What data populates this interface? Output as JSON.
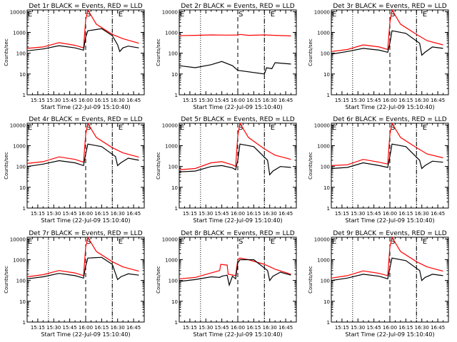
{
  "chart_data": {
    "type": "line",
    "layout": "3x3 grid",
    "shared": {
      "xlabel": "Start Time (22-Jul-09 15:10:40)",
      "ylabel": "Counts/sec",
      "xticks": [
        "15:15",
        "15:30",
        "15:45",
        "16:00",
        "16:15",
        "16:30",
        "16:45"
      ],
      "xtick_minutes": [
        15,
        30,
        45,
        60,
        75,
        90,
        105
      ],
      "xlim_minutes": [
        5,
        115
      ],
      "yscale": "log",
      "ylim": [
        1,
        12000
      ],
      "yticks": [
        "1",
        "10",
        "100",
        "1000",
        "10000"
      ],
      "colors": {
        "events": "#000000",
        "lld": "#ff0000",
        "frame": "#000000"
      },
      "marker_labels": [
        "E",
        "S",
        "E"
      ],
      "marker_minutes": [
        5,
        60,
        90
      ],
      "markers_style": {
        "dashed": 60,
        "dotted": [
          25,
          85
        ]
      }
    },
    "panels": [
      {
        "title": "Det 1r BLACK = Events, RED = LLD",
        "events": [
          [
            5,
            130
          ],
          [
            20,
            160
          ],
          [
            35,
            230
          ],
          [
            50,
            180
          ],
          [
            58,
            140
          ],
          [
            60,
            600
          ],
          [
            62,
            1200
          ],
          [
            75,
            1500
          ],
          [
            85,
            700
          ],
          [
            90,
            250
          ],
          [
            92,
            120
          ],
          [
            95,
            180
          ],
          [
            100,
            220
          ],
          [
            110,
            180
          ]
        ],
        "lld": [
          [
            5,
            170
          ],
          [
            20,
            200
          ],
          [
            35,
            320
          ],
          [
            50,
            240
          ],
          [
            58,
            180
          ],
          [
            60,
            4000
          ],
          [
            62,
            12000
          ],
          [
            70,
            2500
          ],
          [
            85,
            800
          ],
          [
            95,
            500
          ],
          [
            110,
            300
          ]
        ]
      },
      {
        "title": "Det 2r BLACK = Events, RED = LLD",
        "events": [
          [
            5,
            25
          ],
          [
            20,
            20
          ],
          [
            35,
            28
          ],
          [
            45,
            40
          ],
          [
            55,
            25
          ],
          [
            60,
            15
          ],
          [
            85,
            10
          ],
          [
            87,
            20
          ],
          [
            92,
            18
          ],
          [
            95,
            35
          ],
          [
            110,
            30
          ]
        ],
        "lld": [
          [
            5,
            700
          ],
          [
            20,
            720
          ],
          [
            35,
            760
          ],
          [
            50,
            740
          ],
          [
            60,
            750
          ],
          [
            62,
            800
          ],
          [
            70,
            720
          ],
          [
            85,
            760
          ],
          [
            95,
            720
          ],
          [
            110,
            680
          ]
        ]
      },
      {
        "title": "Det 3r BLACK = Events, RED = LLD",
        "events": [
          [
            5,
            90
          ],
          [
            20,
            120
          ],
          [
            35,
            170
          ],
          [
            50,
            140
          ],
          [
            58,
            110
          ],
          [
            60,
            300
          ],
          [
            62,
            1200
          ],
          [
            75,
            900
          ],
          [
            88,
            300
          ],
          [
            90,
            80
          ],
          [
            93,
            110
          ],
          [
            100,
            200
          ],
          [
            110,
            170
          ]
        ],
        "lld": [
          [
            5,
            120
          ],
          [
            20,
            150
          ],
          [
            35,
            250
          ],
          [
            50,
            200
          ],
          [
            58,
            150
          ],
          [
            60,
            3000
          ],
          [
            62,
            12000
          ],
          [
            70,
            2500
          ],
          [
            85,
            800
          ],
          [
            95,
            400
          ],
          [
            110,
            250
          ]
        ]
      },
      {
        "title": "Det 4r BLACK = Events, RED = LLD",
        "events": [
          [
            5,
            100
          ],
          [
            20,
            130
          ],
          [
            35,
            190
          ],
          [
            50,
            150
          ],
          [
            58,
            110
          ],
          [
            60,
            400
          ],
          [
            62,
            1200
          ],
          [
            75,
            900
          ],
          [
            88,
            300
          ],
          [
            90,
            110
          ],
          [
            93,
            150
          ],
          [
            100,
            250
          ],
          [
            110,
            200
          ]
        ],
        "lld": [
          [
            5,
            140
          ],
          [
            20,
            170
          ],
          [
            35,
            290
          ],
          [
            50,
            220
          ],
          [
            58,
            160
          ],
          [
            60,
            3500
          ],
          [
            62,
            12000
          ],
          [
            70,
            2500
          ],
          [
            85,
            800
          ],
          [
            95,
            450
          ],
          [
            110,
            280
          ]
        ]
      },
      {
        "title": "Det 5r BLACK = Events, RED = LLD",
        "events": [
          [
            5,
            55
          ],
          [
            20,
            60
          ],
          [
            35,
            100
          ],
          [
            45,
            110
          ],
          [
            55,
            85
          ],
          [
            58,
            70
          ],
          [
            60,
            200
          ],
          [
            62,
            1200
          ],
          [
            75,
            900
          ],
          [
            88,
            200
          ],
          [
            90,
            40
          ],
          [
            93,
            60
          ],
          [
            100,
            100
          ],
          [
            110,
            90
          ]
        ],
        "lld": [
          [
            5,
            70
          ],
          [
            20,
            80
          ],
          [
            35,
            150
          ],
          [
            45,
            170
          ],
          [
            55,
            120
          ],
          [
            58,
            100
          ],
          [
            60,
            3000
          ],
          [
            62,
            12000
          ],
          [
            70,
            2500
          ],
          [
            85,
            700
          ],
          [
            95,
            350
          ],
          [
            110,
            220
          ]
        ]
      },
      {
        "title": "Det 6r BLACK = Events, RED = LLD",
        "events": [
          [
            5,
            80
          ],
          [
            20,
            90
          ],
          [
            35,
            150
          ],
          [
            50,
            110
          ],
          [
            58,
            90
          ],
          [
            60,
            300
          ],
          [
            62,
            1200
          ],
          [
            75,
            900
          ],
          [
            88,
            200
          ],
          [
            90,
            80
          ],
          [
            93,
            110
          ],
          [
            100,
            180
          ],
          [
            110,
            160
          ]
        ],
        "lld": [
          [
            5,
            110
          ],
          [
            20,
            120
          ],
          [
            35,
            220
          ],
          [
            50,
            160
          ],
          [
            58,
            130
          ],
          [
            60,
            3500
          ],
          [
            62,
            12000
          ],
          [
            70,
            2500
          ],
          [
            85,
            800
          ],
          [
            95,
            400
          ],
          [
            110,
            260
          ]
        ]
      },
      {
        "title": "Det 7r BLACK = Events, RED = LLD",
        "events": [
          [
            5,
            120
          ],
          [
            20,
            150
          ],
          [
            35,
            220
          ],
          [
            50,
            170
          ],
          [
            58,
            130
          ],
          [
            60,
            500
          ],
          [
            62,
            1200
          ],
          [
            75,
            1300
          ],
          [
            85,
            600
          ],
          [
            90,
            110
          ],
          [
            93,
            150
          ],
          [
            100,
            210
          ],
          [
            110,
            180
          ]
        ],
        "lld": [
          [
            5,
            150
          ],
          [
            20,
            190
          ],
          [
            35,
            300
          ],
          [
            50,
            230
          ],
          [
            58,
            170
          ],
          [
            60,
            4000
          ],
          [
            62,
            12000
          ],
          [
            70,
            2500
          ],
          [
            85,
            800
          ],
          [
            95,
            450
          ],
          [
            110,
            280
          ]
        ]
      },
      {
        "title": "Det 8r BLACK = Events, RED = LLD",
        "events": [
          [
            5,
            90
          ],
          [
            20,
            110
          ],
          [
            35,
            150
          ],
          [
            43,
            140
          ],
          [
            45,
            160
          ],
          [
            50,
            180
          ],
          [
            52,
            60
          ],
          [
            55,
            160
          ],
          [
            58,
            120
          ],
          [
            60,
            700
          ],
          [
            62,
            1000
          ],
          [
            75,
            1000
          ],
          [
            88,
            300
          ],
          [
            90,
            100
          ],
          [
            93,
            160
          ],
          [
            100,
            250
          ],
          [
            110,
            180
          ]
        ],
        "lld": [
          [
            5,
            120
          ],
          [
            20,
            140
          ],
          [
            35,
            230
          ],
          [
            43,
            300
          ],
          [
            44,
            600
          ],
          [
            50,
            550
          ],
          [
            51,
            200
          ],
          [
            58,
            170
          ],
          [
            60,
            1000
          ],
          [
            62,
            1200
          ],
          [
            70,
            1000
          ],
          [
            85,
            600
          ],
          [
            95,
            350
          ],
          [
            110,
            200
          ]
        ]
      },
      {
        "title": "Det 9r BLACK = Events, RED = LLD",
        "events": [
          [
            5,
            100
          ],
          [
            20,
            130
          ],
          [
            35,
            200
          ],
          [
            50,
            160
          ],
          [
            58,
            120
          ],
          [
            60,
            400
          ],
          [
            62,
            1200
          ],
          [
            75,
            900
          ],
          [
            88,
            300
          ],
          [
            90,
            100
          ],
          [
            93,
            140
          ],
          [
            100,
            200
          ],
          [
            110,
            170
          ]
        ],
        "lld": [
          [
            5,
            130
          ],
          [
            20,
            170
          ],
          [
            35,
            290
          ],
          [
            50,
            220
          ],
          [
            58,
            170
          ],
          [
            60,
            4000
          ],
          [
            62,
            12000
          ],
          [
            70,
            2500
          ],
          [
            85,
            800
          ],
          [
            95,
            450
          ],
          [
            110,
            280
          ]
        ]
      }
    ]
  }
}
